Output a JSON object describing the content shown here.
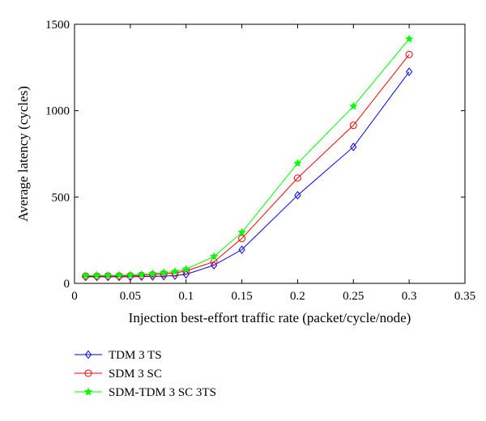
{
  "chart_data": {
    "type": "line",
    "title": "",
    "xlabel": "Injection best-effort traffic rate (packet/cycle/node)",
    "ylabel": "Average latency (cycles)",
    "xlim": [
      0,
      0.35
    ],
    "ylim": [
      0,
      1500
    ],
    "xticks": [
      0,
      0.05,
      0.1,
      0.15,
      0.2,
      0.25,
      0.3,
      0.35
    ],
    "xtick_labels": [
      "0",
      "0.05",
      "0.1",
      "0.15",
      "0.2",
      "0.25",
      "0.3",
      "0.35"
    ],
    "yticks": [
      0,
      500,
      1000,
      1500
    ],
    "ytick_labels": [
      "0",
      "500",
      "1000",
      "1500"
    ],
    "grid": false,
    "legend_position": "below plot, left",
    "x": [
      0.01,
      0.02,
      0.03,
      0.04,
      0.05,
      0.06,
      0.07,
      0.08,
      0.09,
      0.1,
      0.125,
      0.15,
      0.2,
      0.25,
      0.3
    ],
    "series": [
      {
        "name": "TDM 3 TS",
        "color": "#0000ff",
        "marker": "diamond",
        "values": [
          38,
          38,
          38,
          38,
          38,
          39,
          40,
          42,
          45,
          52,
          105,
          195,
          510,
          790,
          1225
        ]
      },
      {
        "name": "SDM 3 SC",
        "color": "#ff0000",
        "marker": "circle",
        "values": [
          42,
          42,
          43,
          43,
          44,
          46,
          50,
          55,
          60,
          72,
          125,
          260,
          610,
          915,
          1325
        ]
      },
      {
        "name": "SDM-TDM 3 SC 3TS",
        "color": "#00ff00",
        "marker": "star",
        "values": [
          45,
          46,
          46,
          47,
          48,
          51,
          56,
          62,
          68,
          82,
          155,
          295,
          695,
          1025,
          1415
        ]
      }
    ]
  }
}
